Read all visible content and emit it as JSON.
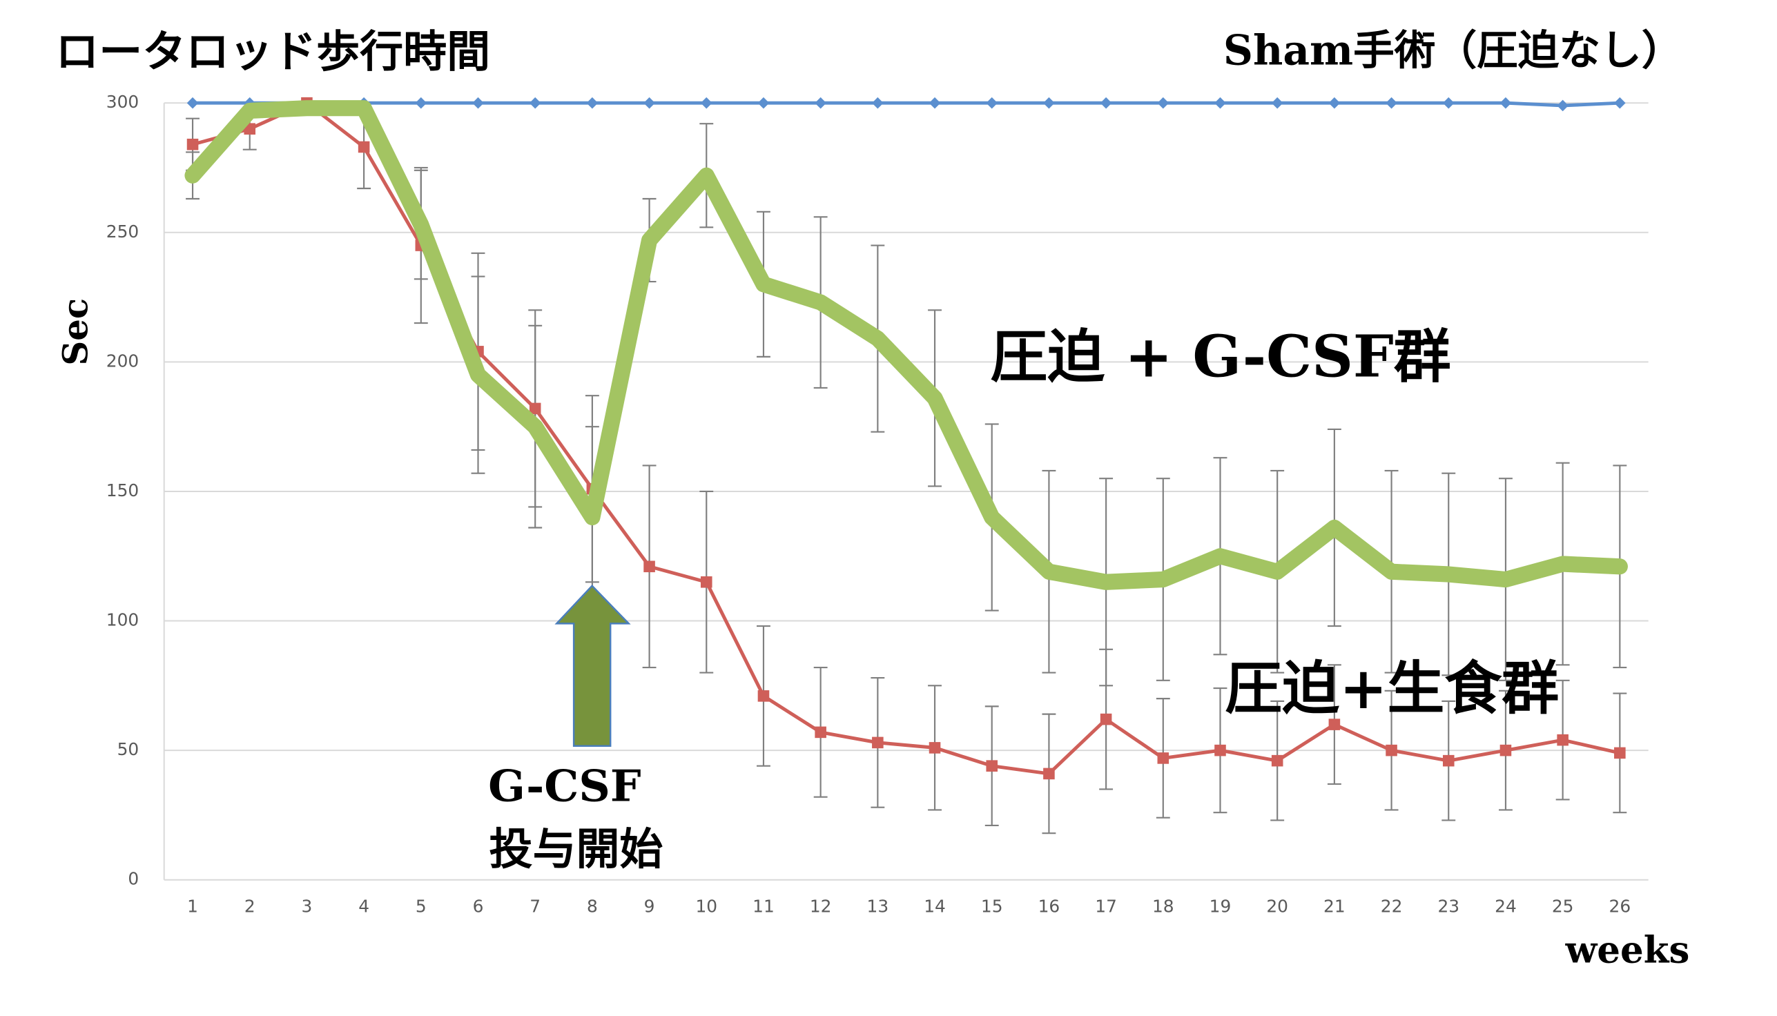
{
  "chart_data": {
    "type": "line",
    "title": "ロータロッド歩行時間",
    "y_label": "Sec",
    "x_label": "weeks",
    "x": [
      1,
      2,
      3,
      4,
      5,
      6,
      7,
      8,
      9,
      10,
      11,
      12,
      13,
      14,
      15,
      16,
      17,
      18,
      19,
      20,
      21,
      22,
      23,
      24,
      25,
      26
    ],
    "xlim": [
      0.5,
      26.5
    ],
    "xticks": [
      1,
      2,
      3,
      4,
      5,
      6,
      7,
      8,
      9,
      10,
      11,
      12,
      13,
      14,
      15,
      16,
      17,
      18,
      19,
      20,
      21,
      22,
      23,
      24,
      25,
      26
    ],
    "ylim": [
      0,
      300
    ],
    "yticks": [
      0,
      50,
      100,
      150,
      200,
      250,
      300
    ],
    "grid": true,
    "series": [
      {
        "name": "Sham手術（圧迫なし）",
        "color": "#5b8fcf",
        "marker": "diamond",
        "values": [
          300,
          300,
          300,
          300,
          300,
          300,
          300,
          300,
          300,
          300,
          300,
          300,
          300,
          300,
          300,
          300,
          300,
          300,
          300,
          300,
          300,
          300,
          300,
          300,
          299,
          300
        ]
      },
      {
        "name": "圧迫+生食群",
        "color": "#cf5f59",
        "marker": "square",
        "values": [
          284,
          290,
          300,
          283,
          245,
          204,
          182,
          151,
          121,
          115,
          71,
          57,
          53,
          51,
          44,
          41,
          62,
          47,
          50,
          46,
          60,
          50,
          46,
          50,
          54,
          49
        ],
        "errors": [
          10,
          8,
          0,
          16,
          30,
          38,
          38,
          36,
          39,
          35,
          27,
          25,
          25,
          24,
          23,
          23,
          27,
          23,
          24,
          23,
          23,
          23,
          23,
          23,
          23,
          23
        ]
      },
      {
        "name": "圧迫 + G-CSF群",
        "color": "#a3c462",
        "marker": "none",
        "values": [
          272,
          297,
          298,
          298,
          253,
          195,
          175,
          140,
          247,
          272,
          230,
          223,
          209,
          186,
          140,
          119,
          115,
          116,
          125,
          119,
          136,
          119,
          118,
          116,
          122,
          121
        ],
        "errors": [
          9,
          0,
          0,
          0,
          21,
          38,
          39,
          35,
          16,
          20,
          28,
          33,
          36,
          34,
          36,
          39,
          40,
          39,
          38,
          39,
          38,
          39,
          39,
          39,
          39,
          39
        ]
      }
    ],
    "annotation": [
      "G-CSF",
      "投与開始"
    ]
  }
}
